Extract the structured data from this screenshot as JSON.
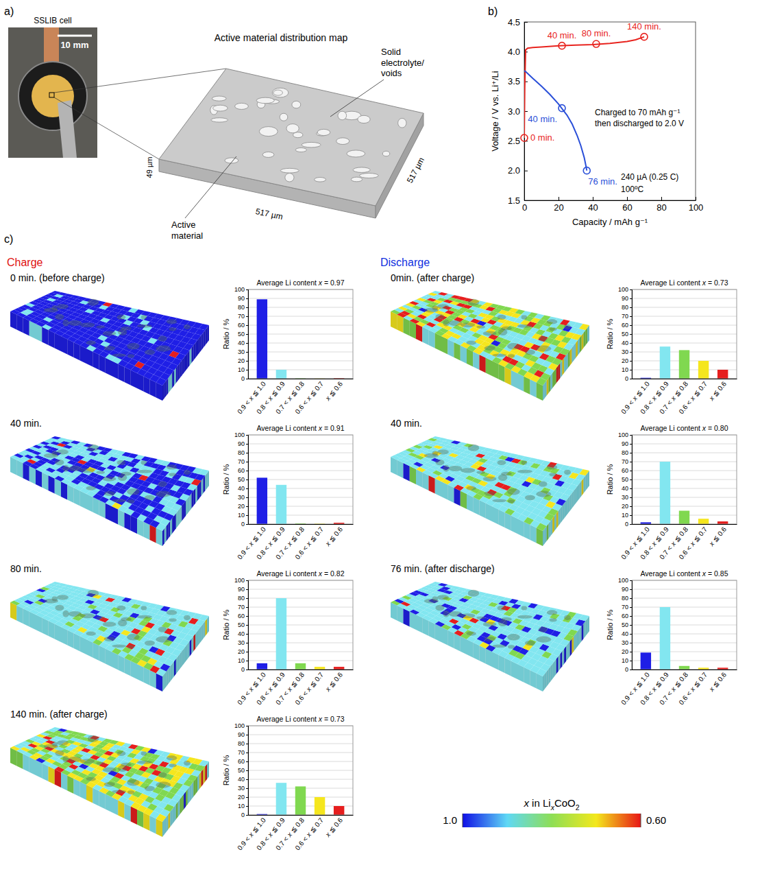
{
  "figure": {
    "panel_labels": [
      "a)",
      "b)",
      "c)"
    ]
  },
  "panel_a": {
    "cell_label": "SSLIB cell",
    "scale_bar": "10 mm",
    "title": "Active material distribution map",
    "void_label": "Solid electrolyte/ voids",
    "active_label": "Active material",
    "width_label": "517 µm",
    "depth_label": "517 µm",
    "thickness_label": "49 µm"
  },
  "panel_c": {
    "charge_label": "Charge",
    "discharge_label": "Discharge"
  },
  "colorbar": {
    "title": "x in LixCoO2",
    "range": [
      1,
      0.6
    ],
    "ticks": [
      {
        "value": 1,
        "label": "1.0"
      },
      {
        "value": 0.6,
        "label": "0.60"
      }
    ],
    "colors": [
      "#1010e6",
      "#5fd8f5",
      "#8ede55",
      "#f3e81c",
      "#e81616"
    ]
  },
  "chart_data": [
    {
      "type": "line",
      "xlabel": "Capacity / mAh g⁻¹",
      "ylabel": "Voltage / V vs. Li⁺/Li",
      "xlim": [
        0,
        100
      ],
      "xticks": [
        0,
        20,
        40,
        60,
        80,
        100
      ],
      "ylim": [
        1.5,
        4.5
      ],
      "yticks": [
        1.5,
        {
          "value": 2,
          "label": "2.0"
        },
        2.5,
        {
          "value": 3,
          "label": "3.0"
        },
        3.5,
        {
          "value": 4,
          "label": "4.0"
        },
        4.5
      ],
      "series": [
        {
          "color": "#e8231e",
          "x": [
            0,
            0.3,
            0.8,
            2,
            5,
            10,
            20,
            30,
            40,
            50,
            60,
            65,
            70
          ],
          "values": [
            2.55,
            3.4,
            4.03,
            4.06,
            4.07,
            4.08,
            4.1,
            4.11,
            4.12,
            4.14,
            4.17,
            4.2,
            4.25
          ]
        },
        {
          "color": "#2a4fd8",
          "x": [
            0,
            1,
            5,
            10,
            15,
            20,
            25,
            28,
            31,
            33,
            35,
            36,
            36.5
          ],
          "values": [
            3.68,
            3.66,
            3.55,
            3.42,
            3.28,
            3.12,
            2.93,
            2.78,
            2.58,
            2.42,
            2.22,
            2.08,
            2.0
          ]
        }
      ],
      "annotations": [
        {
          "text": "0 min.",
          "x": 0,
          "y": 2.55,
          "color": "#e8231e"
        },
        {
          "text": "40 min.",
          "x": 22,
          "y": 4.1,
          "color": "#e8231e"
        },
        {
          "text": "80 min.",
          "x": 42,
          "y": 4.13,
          "color": "#e8231e"
        },
        {
          "text": "140 min.",
          "x": 70,
          "y": 4.25,
          "color": "#e8231e"
        },
        {
          "text": "40 min.",
          "x": 22,
          "y": 3.05,
          "color": "#2a4fd8"
        },
        {
          "text": "76 min.",
          "x": 36.5,
          "y": 2.0,
          "color": "#2a4fd8"
        }
      ],
      "notes": [
        "Charged to 70 mAh g⁻¹",
        "then discharged to 2.0 V",
        "240 µA (0.25 C)",
        "100ºC"
      ]
    },
    {
      "type": "bar",
      "map_label": "0 min. (before charge)",
      "title": "Average Li content x = 0.97",
      "ylabel": "Ratio / %",
      "categories": [
        "0.9 < x ≦ 1.0",
        "0.8 < x ≦ 0.9",
        "0.7 < x ≦ 0.8",
        "0.6 < x ≦ 0.7",
        "x ≦ 0.6"
      ],
      "values": [
        89,
        10,
        0.4,
        0.2,
        0.5
      ],
      "colors": [
        "#1f1fe6",
        "#82e6f0",
        "#80d850",
        "#f5e61e",
        "#e61e1e"
      ],
      "ylim": [
        0,
        100
      ],
      "yticks": [
        0,
        10,
        20,
        30,
        40,
        50,
        60,
        70,
        80,
        90,
        100
      ],
      "grid": true
    },
    {
      "type": "bar",
      "map_label": "40 min.",
      "title": "Average Li content x = 0.91",
      "ylabel": "Ratio / %",
      "categories": [
        "0.9 < x ≦ 1.0",
        "0.8 < x ≦ 0.9",
        "0.7 < x ≦ 0.8",
        "0.6 < x ≦ 0.7",
        "x ≦ 0.6"
      ],
      "values": [
        52,
        44,
        0.8,
        0.5,
        1.5
      ],
      "colors": [
        "#1f1fe6",
        "#82e6f0",
        "#80d850",
        "#f5e61e",
        "#e61e1e"
      ],
      "ylim": [
        0,
        100
      ],
      "yticks": [
        0,
        10,
        20,
        30,
        40,
        50,
        60,
        70,
        80,
        90,
        100
      ],
      "grid": true
    },
    {
      "type": "bar",
      "map_label": "80 min.",
      "title": "Average Li content x = 0.82",
      "ylabel": "Ratio / %",
      "categories": [
        "0.9 < x ≦ 1.0",
        "0.8 < x ≦ 0.9",
        "0.7 < x ≦ 0.8",
        "0.6 < x ≦ 0.7",
        "x ≦ 0.6"
      ],
      "values": [
        7,
        80,
        7,
        3,
        3
      ],
      "colors": [
        "#1f1fe6",
        "#82e6f0",
        "#80d850",
        "#f5e61e",
        "#e61e1e"
      ],
      "ylim": [
        0,
        100
      ],
      "yticks": [
        0,
        10,
        20,
        30,
        40,
        50,
        60,
        70,
        80,
        90,
        100
      ],
      "grid": true
    },
    {
      "type": "bar",
      "map_label": "140 min.  (after charge)",
      "title": "Average Li content x = 0.73",
      "ylabel": "Ratio / %",
      "categories": [
        "0.9 < x ≦ 1.0",
        "0.8 < x ≦ 0.9",
        "0.7 < x ≦ 0.8",
        "0.6 < x ≦ 0.7",
        "x ≦ 0.6"
      ],
      "values": [
        1,
        36,
        32,
        20,
        10
      ],
      "colors": [
        "#1f1fe6",
        "#82e6f0",
        "#80d850",
        "#f5e61e",
        "#e61e1e"
      ],
      "ylim": [
        0,
        100
      ],
      "yticks": [
        0,
        10,
        20,
        30,
        40,
        50,
        60,
        70,
        80,
        90,
        100
      ],
      "grid": true
    },
    {
      "type": "bar",
      "map_label": "0min. (after charge)",
      "title": "Average Li content x = 0.73",
      "ylabel": "Ratio / %",
      "categories": [
        "0.9 < x ≦ 1.0",
        "0.8 < x ≦ 0.9",
        "0.7 < x ≦ 0.8",
        "0.6 < x ≦ 0.7",
        "x ≦ 0.6"
      ],
      "values": [
        1,
        36,
        32,
        20,
        10
      ],
      "colors": [
        "#1f1fe6",
        "#82e6f0",
        "#80d850",
        "#f5e61e",
        "#e61e1e"
      ],
      "ylim": [
        0,
        100
      ],
      "yticks": [
        0,
        10,
        20,
        30,
        40,
        50,
        60,
        70,
        80,
        90,
        100
      ],
      "grid": true
    },
    {
      "type": "bar",
      "map_label": "40 min.",
      "title": "Average Li content x = 0.80",
      "ylabel": "Ratio / %",
      "categories": [
        "0.9 < x ≦ 1.0",
        "0.8 < x ≦ 0.9",
        "0.7 < x ≦ 0.8",
        "0.6 < x ≦ 0.7",
        "x ≦ 0.6"
      ],
      "values": [
        2,
        70,
        15,
        6,
        3
      ],
      "colors": [
        "#1f1fe6",
        "#82e6f0",
        "#80d850",
        "#f5e61e",
        "#e61e1e"
      ],
      "ylim": [
        0,
        100
      ],
      "yticks": [
        0,
        10,
        20,
        30,
        40,
        50,
        60,
        70,
        80,
        90,
        100
      ],
      "grid": true
    },
    {
      "type": "bar",
      "map_label": "76 min. (after discharge)",
      "title": "Average Li content x = 0.85",
      "ylabel": "Ratio / %",
      "categories": [
        "0.9 < x ≦ 1.0",
        "0.8 < x ≦ 0.9",
        "0.7 < x ≦ 0.8",
        "0.6 < x ≦ 0.7",
        "x ≦ 0.6"
      ],
      "values": [
        19,
        70,
        4,
        2,
        2
      ],
      "colors": [
        "#1f1fe6",
        "#82e6f0",
        "#80d850",
        "#f5e61e",
        "#e61e1e"
      ],
      "ylim": [
        0,
        100
      ],
      "yticks": [
        0,
        10,
        20,
        30,
        40,
        50,
        60,
        70,
        80,
        90,
        100
      ],
      "grid": true
    }
  ]
}
